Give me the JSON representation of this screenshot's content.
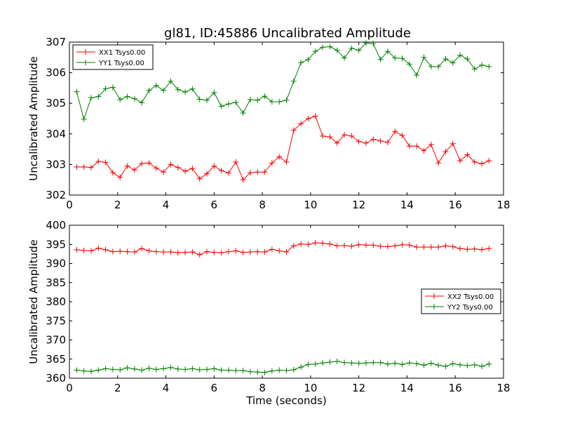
{
  "title": "gl81, ID:45886 Uncalibrated Amplitude",
  "colors": {
    "red": "#ff0000",
    "green": "#008000"
  },
  "chart_data": [
    {
      "type": "line",
      "xlabel": "",
      "ylabel": "Uncalibrated Amplitude",
      "xlim": [
        0,
        18
      ],
      "ylim": [
        302,
        307
      ],
      "xticks": [
        "0",
        "2",
        "4",
        "6",
        "8",
        "10",
        "12",
        "14",
        "16",
        "18"
      ],
      "yticks": [
        "302",
        "303",
        "304",
        "305",
        "306",
        "307"
      ],
      "grid": false,
      "legend_position": "top-left",
      "x": [
        0.3,
        0.6,
        0.9,
        1.2,
        1.5,
        1.8,
        2.1,
        2.4,
        2.7,
        3.0,
        3.3,
        3.6,
        3.9,
        4.2,
        4.5,
        4.8,
        5.1,
        5.4,
        5.7,
        6.0,
        6.3,
        6.6,
        6.9,
        7.2,
        7.5,
        7.8,
        8.1,
        8.4,
        8.7,
        9.0,
        9.3,
        9.6,
        9.9,
        10.2,
        10.5,
        10.8,
        11.1,
        11.4,
        11.7,
        12.0,
        12.3,
        12.6,
        12.9,
        13.2,
        13.5,
        13.8,
        14.1,
        14.4,
        14.7,
        15.0,
        15.3,
        15.6,
        15.9,
        16.2,
        16.5,
        16.8,
        17.1,
        17.4
      ],
      "series": [
        {
          "name": "XX1 Tsys0.00",
          "color": "#ff0000",
          "values": [
            302.92,
            302.92,
            302.9,
            303.1,
            303.07,
            302.73,
            302.58,
            302.95,
            302.82,
            303.03,
            303.05,
            302.88,
            302.75,
            303.0,
            302.9,
            302.78,
            302.87,
            302.53,
            302.7,
            302.95,
            302.8,
            302.72,
            303.08,
            302.5,
            302.73,
            302.75,
            302.75,
            303.05,
            303.25,
            303.08,
            304.12,
            304.33,
            304.5,
            304.58,
            303.93,
            303.9,
            303.7,
            303.97,
            303.93,
            303.75,
            303.7,
            303.82,
            303.77,
            303.72,
            304.08,
            303.95,
            303.6,
            303.6,
            303.45,
            303.65,
            303.05,
            303.42,
            303.68,
            303.12,
            303.32,
            303.08,
            303.02,
            303.12
          ]
        },
        {
          "name": "YY1 Tsys0.00",
          "color": "#008000",
          "values": [
            305.38,
            304.48,
            305.18,
            305.22,
            305.48,
            305.52,
            305.12,
            305.22,
            305.15,
            305.02,
            305.42,
            305.58,
            305.42,
            305.72,
            305.45,
            305.37,
            305.47,
            305.13,
            305.1,
            305.35,
            304.9,
            304.98,
            305.03,
            304.68,
            305.12,
            305.1,
            305.23,
            305.05,
            305.05,
            305.1,
            305.72,
            306.33,
            306.43,
            306.7,
            306.83,
            306.85,
            306.73,
            306.48,
            306.8,
            306.73,
            306.97,
            306.95,
            306.43,
            306.7,
            306.48,
            306.47,
            306.28,
            305.92,
            306.5,
            306.2,
            306.2,
            306.45,
            306.32,
            306.57,
            306.45,
            306.12,
            306.25,
            306.2
          ]
        }
      ]
    },
    {
      "type": "line",
      "xlabel": "Time (seconds)",
      "ylabel": "Uncalibrated Amplitude",
      "xlim": [
        0,
        18
      ],
      "ylim": [
        360,
        400
      ],
      "xticks": [
        "0",
        "2",
        "4",
        "6",
        "8",
        "10",
        "12",
        "14",
        "16",
        "18"
      ],
      "yticks": [
        "360",
        "365",
        "370",
        "375",
        "380",
        "385",
        "390",
        "395",
        "400"
      ],
      "grid": false,
      "legend_position": "center-right",
      "x": [
        0.3,
        0.6,
        0.9,
        1.2,
        1.5,
        1.8,
        2.1,
        2.4,
        2.7,
        3.0,
        3.3,
        3.6,
        3.9,
        4.2,
        4.5,
        4.8,
        5.1,
        5.4,
        5.7,
        6.0,
        6.3,
        6.6,
        6.9,
        7.2,
        7.5,
        7.8,
        8.1,
        8.4,
        8.7,
        9.0,
        9.3,
        9.6,
        9.9,
        10.2,
        10.5,
        10.8,
        11.1,
        11.4,
        11.7,
        12.0,
        12.3,
        12.6,
        12.9,
        13.2,
        13.5,
        13.8,
        14.1,
        14.4,
        14.7,
        15.0,
        15.3,
        15.6,
        15.9,
        16.2,
        16.5,
        16.8,
        17.1,
        17.4
      ],
      "series": [
        {
          "name": "XX2 Tsys0.00",
          "color": "#ff0000",
          "values": [
            393.6,
            393.4,
            393.3,
            394.0,
            393.6,
            393.1,
            393.2,
            393.1,
            393.0,
            393.9,
            393.3,
            393.1,
            393.0,
            393.0,
            392.8,
            392.9,
            393.0,
            392.3,
            393.1,
            392.9,
            392.8,
            393.1,
            393.3,
            392.9,
            393.0,
            393.1,
            393.0,
            393.7,
            393.3,
            393.0,
            394.6,
            395.1,
            395.0,
            395.4,
            395.3,
            395.1,
            394.6,
            394.7,
            394.5,
            394.9,
            394.8,
            394.8,
            394.5,
            394.4,
            394.6,
            394.9,
            394.8,
            394.3,
            394.3,
            394.3,
            394.3,
            394.6,
            394.4,
            393.9,
            393.7,
            393.8,
            393.6,
            393.9
          ]
        },
        {
          "name": "YY2 Tsys0.00",
          "color": "#008000",
          "values": [
            362.1,
            361.9,
            361.8,
            362.1,
            362.5,
            362.3,
            362.2,
            362.7,
            362.4,
            362.1,
            362.6,
            362.3,
            362.5,
            362.8,
            362.4,
            362.3,
            362.5,
            362.2,
            362.3,
            362.5,
            362.1,
            362.1,
            362.0,
            362.0,
            361.7,
            361.6,
            361.5,
            361.9,
            362.1,
            362.0,
            362.2,
            362.9,
            363.6,
            363.7,
            364.0,
            364.2,
            364.4,
            364.1,
            364.0,
            363.9,
            364.0,
            364.1,
            364.1,
            363.7,
            363.9,
            363.6,
            364.0,
            363.8,
            363.4,
            363.9,
            363.4,
            363.1,
            363.8,
            363.5,
            363.3,
            363.5,
            363.1,
            363.7
          ]
        }
      ]
    }
  ]
}
